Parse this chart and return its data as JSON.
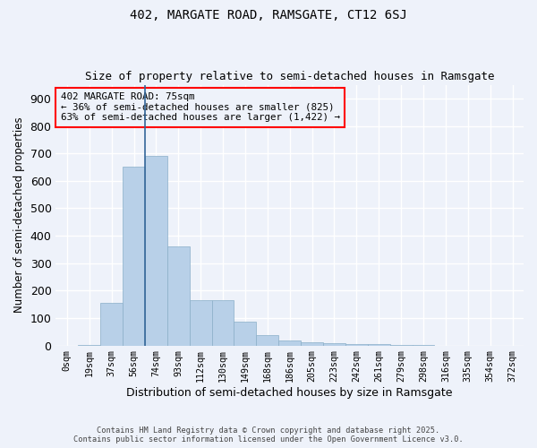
{
  "title1": "402, MARGATE ROAD, RAMSGATE, CT12 6SJ",
  "title2": "Size of property relative to semi-detached houses in Ramsgate",
  "xlabel": "Distribution of semi-detached houses by size in Ramsgate",
  "ylabel": "Number of semi-detached properties",
  "categories": [
    "0sqm",
    "19sqm",
    "37sqm",
    "56sqm",
    "74sqm",
    "93sqm",
    "112sqm",
    "130sqm",
    "149sqm",
    "168sqm",
    "186sqm",
    "205sqm",
    "223sqm",
    "242sqm",
    "261sqm",
    "279sqm",
    "298sqm",
    "316sqm",
    "335sqm",
    "354sqm",
    "372sqm"
  ],
  "values": [
    0,
    2,
    155,
    650,
    690,
    360,
    165,
    165,
    88,
    38,
    18,
    12,
    8,
    5,
    4,
    2,
    1,
    0,
    0,
    0,
    0
  ],
  "bar_color": "#b8d0e8",
  "bar_edge_color": "#8aafc8",
  "subject_size": 75,
  "smaller_pct": 36,
  "smaller_count": 825,
  "larger_pct": 63,
  "larger_count": 1422,
  "annotation_text": "402 MARGATE ROAD: 75sqm\n← 36% of semi-detached houses are smaller (825)\n63% of semi-detached houses are larger (1,422) →",
  "ylim": [
    0,
    950
  ],
  "yticks": [
    0,
    100,
    200,
    300,
    400,
    500,
    600,
    700,
    800,
    900
  ],
  "background_color": "#eef2fa",
  "grid_color": "#ffffff",
  "footer_line1": "Contains HM Land Registry data © Crown copyright and database right 2025.",
  "footer_line2": "Contains public sector information licensed under the Open Government Licence v3.0."
}
